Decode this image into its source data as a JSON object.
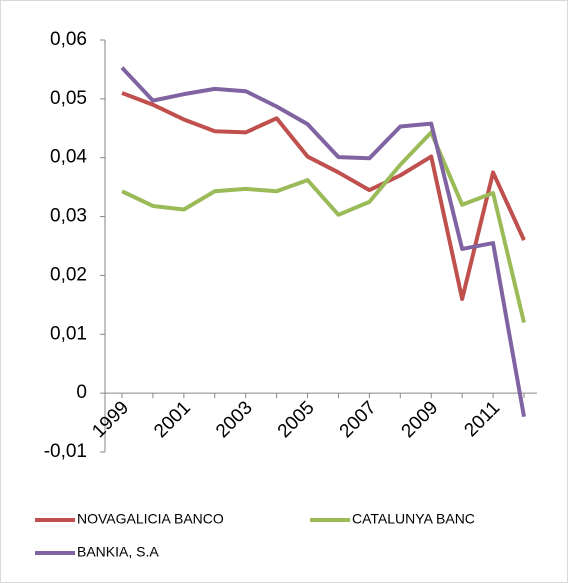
{
  "chart_data": {
    "type": "line",
    "categories": [
      "1999",
      null,
      "2001",
      null,
      "2003",
      null,
      "2005",
      null,
      "2007",
      null,
      "2009",
      null,
      "2011",
      null
    ],
    "series": [
      {
        "name": "NOVAGALICIA BANCO",
        "color": "#c0504d",
        "values": [
          0.051,
          0.049,
          0.0465,
          0.0445,
          0.0443,
          0.0467,
          0.0402,
          0.0375,
          0.0345,
          0.037,
          0.0402,
          0.016,
          0.0375,
          0.026
        ]
      },
      {
        "name": "CATALUNYA BANC",
        "color": "#9bbb59",
        "values": [
          0.0343,
          0.0318,
          0.0312,
          0.0343,
          0.0347,
          0.0343,
          0.0362,
          0.0303,
          0.0325,
          0.0388,
          0.0443,
          0.032,
          0.034,
          0.012
        ]
      },
      {
        "name": "BANKIA, S.A",
        "color": "#8064a2",
        "values": [
          0.0553,
          0.0497,
          0.0508,
          0.0517,
          0.0513,
          0.0487,
          0.0457,
          0.0401,
          0.0399,
          0.0453,
          0.0458,
          0.0245,
          0.0255,
          -0.004
        ]
      }
    ],
    "ylim": [
      -0.01,
      0.06
    ],
    "yticks": [
      {
        "value": -0.01,
        "label": "-0,01"
      },
      0,
      {
        "value": 0.01,
        "label": "0,01"
      },
      {
        "value": 0.02,
        "label": "0,02"
      },
      {
        "value": 0.03,
        "label": "0,03"
      },
      {
        "value": 0.04,
        "label": "0,04"
      },
      {
        "value": 0.05,
        "label": "0,05"
      },
      {
        "value": 0.06,
        "label": "0,06"
      }
    ],
    "legend": "bottom"
  }
}
